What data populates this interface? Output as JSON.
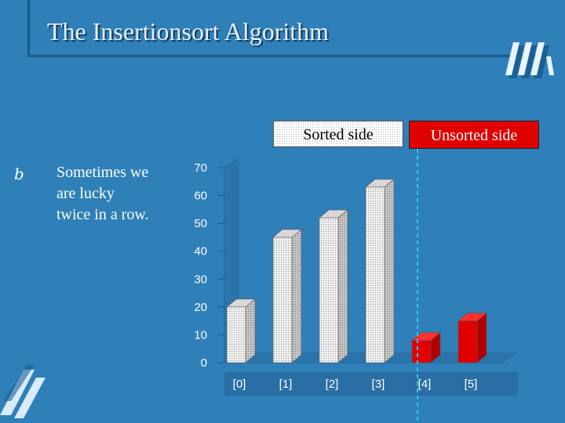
{
  "slide": {
    "title": "The Insertionsort Algorithm",
    "bullet_icon": "b",
    "bullet_lines": [
      "Sometimes we",
      "are lucky",
      "twice in a row."
    ]
  },
  "legend": {
    "sorted_label": "Sorted side",
    "unsorted_label": "Unsorted side"
  },
  "colors": {
    "background": "#2f7fb9",
    "sorted_bar": "#f2f2f2",
    "unsorted_bar": "#e00000",
    "divider": "#2ec4ff"
  },
  "chart_data": {
    "type": "bar",
    "categories": [
      "[0]",
      "[1]",
      "[2]",
      "[3]",
      "[4]",
      "[5]"
    ],
    "values": [
      20,
      45,
      52,
      63,
      8,
      15
    ],
    "sorted_count": 4,
    "ylim": [
      0,
      70
    ],
    "yticks": [
      0,
      10,
      20,
      30,
      40,
      50,
      60,
      70
    ],
    "title": "",
    "xlabel": "",
    "ylabel": ""
  }
}
